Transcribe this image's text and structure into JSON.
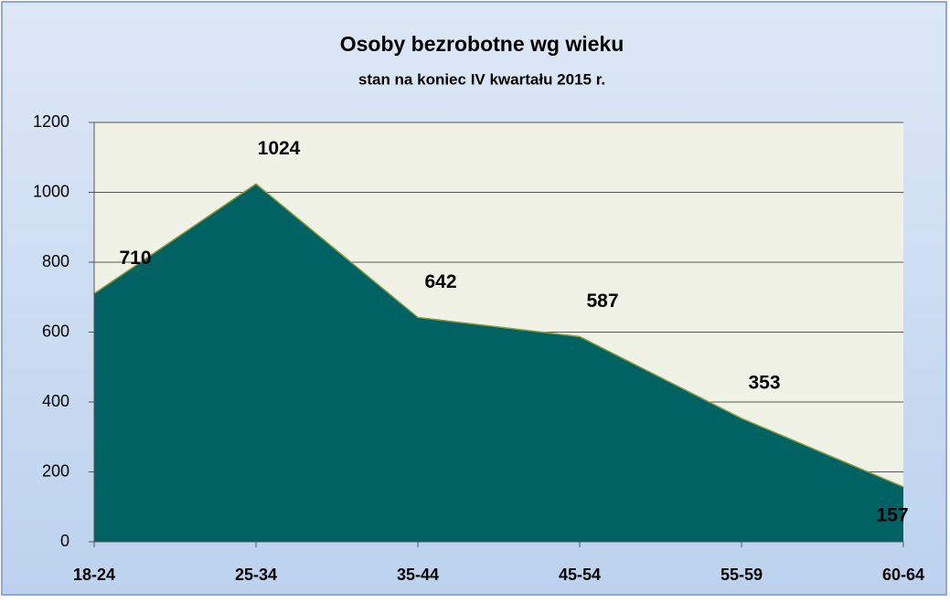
{
  "chart_data": {
    "type": "area",
    "title": "Osoby bezrobotne wg wieku",
    "subtitle": "stan na koniec IV kwartału 2015 r.",
    "categories": [
      "18-24",
      "25-34",
      "35-44",
      "45-54",
      "55-59",
      "60-64"
    ],
    "values": [
      710,
      1024,
      642,
      587,
      353,
      157
    ],
    "color": "#006262",
    "ylim": [
      0,
      1200
    ],
    "yticks": [
      0,
      200,
      400,
      600,
      800,
      1000,
      1200
    ],
    "grid": true
  }
}
